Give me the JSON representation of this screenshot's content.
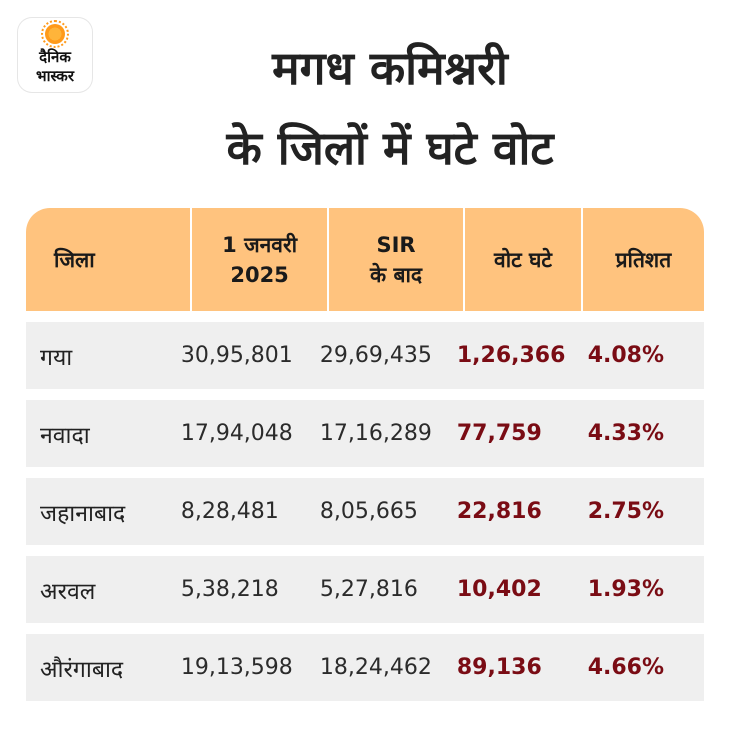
{
  "logo": {
    "line1": "दैनिक",
    "line2": "भास्कर"
  },
  "title": {
    "line1": "मगध कमिश्नरी",
    "line2": "के जिलों में घटे वोट"
  },
  "table": {
    "headers": {
      "district": "जिला",
      "jan_line1": "1 जनवरी",
      "jan_line2": "2025",
      "sir_line1": "SIR",
      "sir_line2": "के बाद",
      "drop": "वोट घटे",
      "percent": "प्रतिशत"
    },
    "rows": [
      {
        "district": "गया",
        "jan": "30,95,801",
        "sir": "29,69,435",
        "drop": "1,26,366",
        "percent": "4.08%"
      },
      {
        "district": "नवादा",
        "jan": "17,94,048",
        "sir": "17,16,289",
        "drop": "77,759",
        "percent": "4.33%"
      },
      {
        "district": "जहानाबाद",
        "jan": "8,28,481",
        "sir": "8,05,665",
        "drop": "22,816",
        "percent": "2.75%"
      },
      {
        "district": "अरवल",
        "jan": "5,38,218",
        "sir": "5,27,816",
        "drop": "10,402",
        "percent": "1.93%"
      },
      {
        "district": "औरंगाबाद",
        "jan": "19,13,598",
        "sir": "18,24,462",
        "drop": "89,136",
        "percent": "4.66%"
      }
    ]
  },
  "colors": {
    "header_bg": "#ffc37e",
    "row_bg": "#efefef",
    "accent": "#7a0c14",
    "logo_sun": "#ff9a1a"
  }
}
